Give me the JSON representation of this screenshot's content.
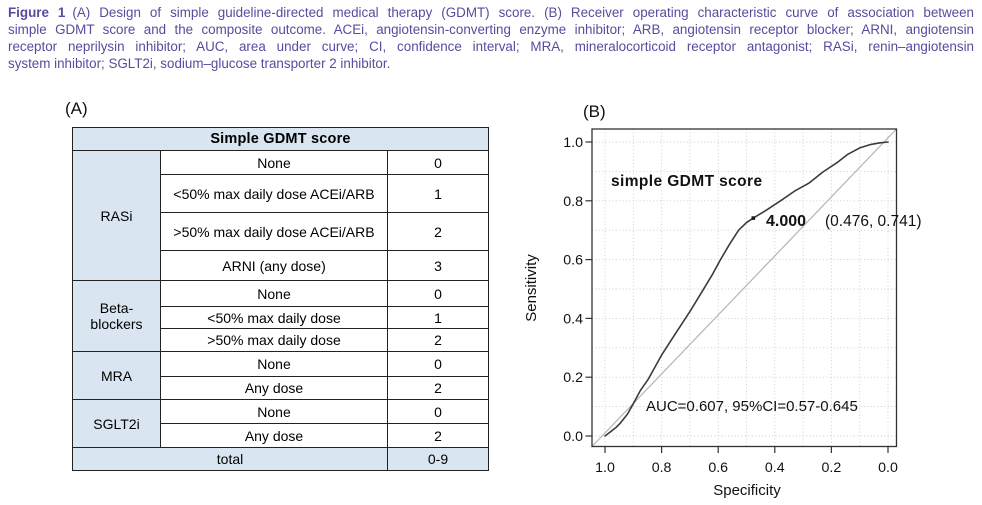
{
  "caption": {
    "figure_label": "Figure 1",
    "lines": [
      "(A) Design of simple guideline-directed medical therapy (GDMT) score. (B) Receiver operating characteristic curve of association between",
      "simple GDMT score and the composite outcome. ACEi, angiotensin-converting enzyme inhibitor; ARB, angiotensin receptor blocker; ARNI, angiotensin",
      "receptor neprilysin inhibitor; AUC, area under curve; CI, confidence interval; MRA, mineralocorticoid receptor antagonist; RASi, renin–angiotensin",
      "system inhibitor; SGLT2i, sodium–glucose transporter 2 inhibitor."
    ],
    "text_color": "#5a4a9e"
  },
  "panel_a": {
    "label": "(A)",
    "table": {
      "title": "Simple GDMT score",
      "groups": [
        {
          "name": "RASi",
          "rows": [
            [
              "None",
              "0"
            ],
            [
              "<50% max daily dose ACEi/ARB",
              "1"
            ],
            [
              ">50% max daily dose ACEi/ARB",
              "2"
            ],
            [
              "ARNI (any dose)",
              "3"
            ]
          ]
        },
        {
          "name": "Beta-blockers",
          "rows": [
            [
              "None",
              "0"
            ],
            [
              "<50% max daily dose",
              "1"
            ],
            [
              ">50% max daily dose",
              "2"
            ]
          ]
        },
        {
          "name": "MRA",
          "rows": [
            [
              "None",
              "0"
            ],
            [
              "Any dose",
              "2"
            ]
          ]
        },
        {
          "name": "SGLT2i",
          "rows": [
            [
              "None",
              "0"
            ],
            [
              "Any dose",
              "2"
            ]
          ]
        }
      ],
      "total_label": "total",
      "total_value": "0-9",
      "header_bg": "#d9e6f2",
      "border_color": "#222222"
    }
  },
  "panel_b": {
    "label": "(B)"
  },
  "chart_data": {
    "type": "line",
    "title": "simple GDMT score",
    "xlabel": "Specificity",
    "ylabel": "Sensitivity",
    "xlim": [
      1.0,
      0.0
    ],
    "ylim": [
      0.0,
      1.0
    ],
    "x_axis_reversed": true,
    "x_ticks": [
      "1.0",
      "0.8",
      "0.6",
      "0.4",
      "0.2",
      "0.0"
    ],
    "x_tick_values": [
      1.0,
      0.8,
      0.6,
      0.4,
      0.2,
      0.0
    ],
    "y_ticks": [
      "0.0",
      "0.2",
      "0.4",
      "0.6",
      "0.8",
      "1.0"
    ],
    "y_tick_values": [
      0.0,
      0.2,
      0.4,
      0.6,
      0.8,
      1.0
    ],
    "grid": "dotted gridlines every 0.1 on both axes",
    "legend_position": "none",
    "series": [
      {
        "name": "ROC curve (simple GDMT score)",
        "color": "#3c3c3c",
        "points": [
          [
            1.0,
            0.0
          ],
          [
            0.98,
            0.015
          ],
          [
            0.96,
            0.03
          ],
          [
            0.945,
            0.045
          ],
          [
            0.92,
            0.075
          ],
          [
            0.9,
            0.11
          ],
          [
            0.875,
            0.155
          ],
          [
            0.848,
            0.192
          ],
          [
            0.8,
            0.275
          ],
          [
            0.75,
            0.35
          ],
          [
            0.699,
            0.425
          ],
          [
            0.656,
            0.493
          ],
          [
            0.62,
            0.55
          ],
          [
            0.592,
            0.6
          ],
          [
            0.56,
            0.652
          ],
          [
            0.528,
            0.7
          ],
          [
            0.5,
            0.726
          ],
          [
            0.476,
            0.741
          ],
          [
            0.43,
            0.768
          ],
          [
            0.38,
            0.8
          ],
          [
            0.33,
            0.833
          ],
          [
            0.28,
            0.86
          ],
          [
            0.23,
            0.898
          ],
          [
            0.18,
            0.93
          ],
          [
            0.142,
            0.958
          ],
          [
            0.1,
            0.98
          ],
          [
            0.06,
            0.992
          ],
          [
            0.03,
            0.997
          ],
          [
            0.0,
            1.0
          ]
        ]
      },
      {
        "name": "reference diagonal",
        "color": "#b5b5b5",
        "points": [
          [
            1.0,
            0.0
          ],
          [
            0.0,
            1.0
          ]
        ]
      }
    ],
    "marked_point": {
      "threshold_label": "4.000",
      "coords_label": "(0.476, 0.741)",
      "specificity": 0.476,
      "sensitivity": 0.741
    },
    "annotation": "AUC=0.607, 95%CI=0.57-0.645"
  }
}
